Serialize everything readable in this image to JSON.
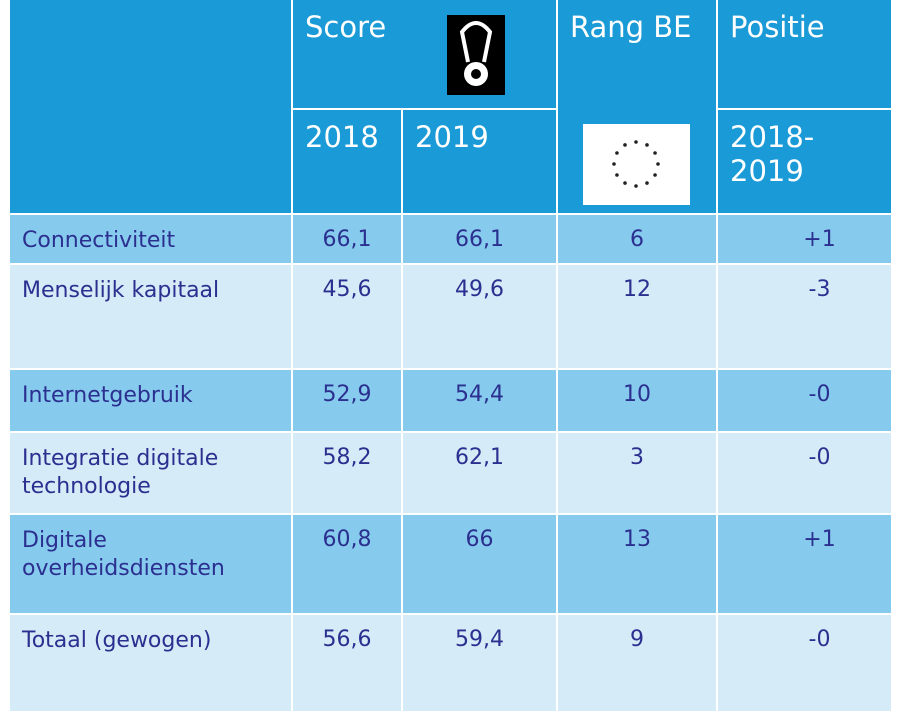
{
  "header": {
    "score": "Score",
    "rank": "Rang BE",
    "position": "Positie",
    "years": [
      "2018",
      "2019"
    ],
    "period": "2018-2019"
  },
  "rows": [
    {
      "label": "Connectiviteit",
      "values": [
        "66,1",
        "66,1",
        "6",
        "+1"
      ]
    },
    {
      "label": "Menselijk kapitaal",
      "values": [
        "45,6",
        "49,6",
        "12",
        "-3"
      ]
    },
    {
      "label": "Internetgebruik",
      "values": [
        "52,9",
        "54,4",
        "10",
        "-0"
      ]
    },
    {
      "label": "Integratie digitale technologie",
      "values": [
        "58,2",
        "62,1",
        "3",
        "-0"
      ]
    },
    {
      "label": "Digitale overheidsdiensten",
      "values": [
        "60,8",
        "66",
        "13",
        "+1"
      ]
    },
    {
      "label": "Totaal (gewogen)",
      "values": [
        "56,6",
        "59,4",
        "9",
        "-0"
      ]
    }
  ]
}
